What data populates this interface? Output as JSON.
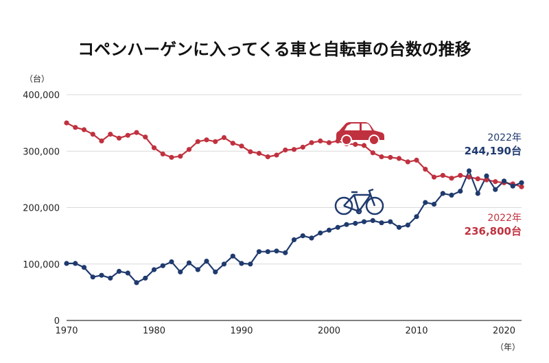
{
  "chart_data": {
    "type": "line",
    "title": "コペンハーゲンに入ってくる車と自転車の台数の推移",
    "ylabel": "（台）",
    "xlabel": "（年）",
    "ylim": [
      0,
      400000
    ],
    "yticks": [
      0,
      100000,
      200000,
      300000,
      400000
    ],
    "ytick_labels": [
      "0",
      "100,000",
      "200,000",
      "300,000",
      "400,000"
    ],
    "xlim": [
      1970,
      2022
    ],
    "xticks": [
      1970,
      1980,
      1990,
      2000,
      2010,
      2020
    ],
    "xtick_labels": [
      "1970",
      "1980",
      "1990",
      "2000",
      "2010",
      "2020"
    ],
    "colors": {
      "car": "#c0313f",
      "bicycle": "#1f3a6e"
    },
    "series": [
      {
        "name": "car",
        "icon": "car-icon",
        "x": [
          1970,
          1971,
          1972,
          1973,
          1974,
          1975,
          1976,
          1977,
          1978,
          1979,
          1980,
          1981,
          1982,
          1983,
          1984,
          1985,
          1986,
          1987,
          1988,
          1989,
          1990,
          1991,
          1992,
          1993,
          1994,
          1995,
          1996,
          1997,
          1998,
          1999,
          2000,
          2001,
          2002,
          2003,
          2004,
          2005,
          2006,
          2007,
          2008,
          2009,
          2010,
          2011,
          2012,
          2013,
          2014,
          2015,
          2016,
          2017,
          2018,
          2019,
          2020,
          2021,
          2022
        ],
        "values": [
          350000,
          342000,
          338000,
          330000,
          318000,
          330000,
          323000,
          328000,
          333000,
          325000,
          306000,
          295000,
          289000,
          291000,
          303000,
          317000,
          320000,
          317000,
          324000,
          314000,
          309000,
          299000,
          296000,
          290000,
          293000,
          302000,
          303000,
          307000,
          315000,
          318000,
          315000,
          318000,
          313000,
          312000,
          310000,
          297000,
          290000,
          289000,
          287000,
          281000,
          284000,
          268000,
          254000,
          257000,
          252000,
          257000,
          254000,
          251000,
          249000,
          246000,
          244000,
          242000,
          236800
        ]
      },
      {
        "name": "bicycle",
        "icon": "bicycle-icon",
        "x": [
          1970,
          1971,
          1972,
          1973,
          1974,
          1975,
          1976,
          1977,
          1978,
          1979,
          1980,
          1981,
          1982,
          1983,
          1984,
          1985,
          1986,
          1987,
          1988,
          1989,
          1990,
          1991,
          1992,
          1993,
          1994,
          1995,
          1996,
          1997,
          1998,
          1999,
          2000,
          2001,
          2002,
          2003,
          2004,
          2005,
          2006,
          2007,
          2008,
          2009,
          2010,
          2011,
          2012,
          2013,
          2014,
          2015,
          2016,
          2017,
          2018,
          2019,
          2020,
          2021,
          2022
        ],
        "values": [
          101000,
          101000,
          94000,
          77000,
          80000,
          75000,
          87000,
          84000,
          67000,
          75000,
          90000,
          97000,
          104000,
          86000,
          102000,
          90000,
          105000,
          86000,
          100000,
          114000,
          101000,
          100000,
          122000,
          122000,
          123000,
          120000,
          143000,
          150000,
          146000,
          155000,
          160000,
          165000,
          170000,
          172000,
          175000,
          177000,
          173000,
          175000,
          165000,
          169000,
          184000,
          209000,
          206000,
          225000,
          222000,
          229000,
          265000,
          225000,
          256000,
          232000,
          247000,
          238000,
          244190
        ]
      }
    ],
    "annotations": {
      "bicycle": {
        "year_label": "2022年",
        "value_label": "244,190台"
      },
      "car": {
        "year_label": "2022年",
        "value_label": "236,800台"
      }
    }
  }
}
